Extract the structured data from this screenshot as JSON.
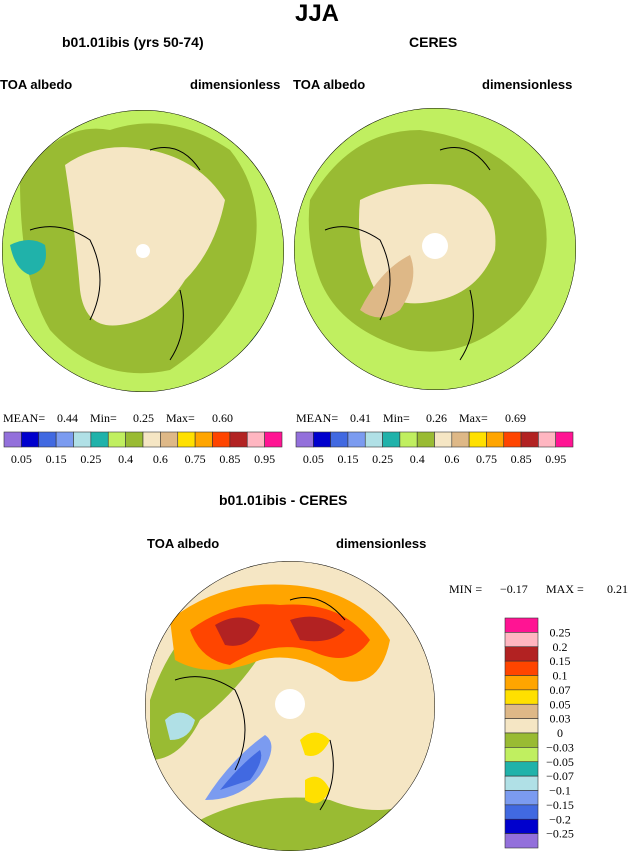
{
  "title": "JJA",
  "panels": [
    {
      "title": "b01.01ibis (yrs 50-74)",
      "left_label": "TOA albedo",
      "right_label": "dimensionless",
      "stats": {
        "mean_label": "MEAN=",
        "mean": "0.44",
        "min_label": "Min=",
        "min": "0.25",
        "max_label": "Max=",
        "max": "0.60"
      }
    },
    {
      "title": "CERES",
      "left_label": "TOA albedo",
      "right_label": "dimensionless",
      "stats": {
        "mean_label": "MEAN=",
        "mean": "0.41",
        "min_label": "Min=",
        "min": "0.26",
        "max_label": "Max=",
        "max": "0.69"
      }
    },
    {
      "title": "b01.01ibis - CERES",
      "left_label": "TOA albedo",
      "right_label": "dimensionless",
      "stats": {
        "min_label": "MIN =",
        "min": "−0.17",
        "max_label": "MAX =",
        "max": "0.21"
      }
    }
  ],
  "colors": [
    "#9370db",
    "#0000cd",
    "#4169e1",
    "#7b9bf0",
    "#b0e0e6",
    "#20b2aa",
    "#c0ef60",
    "#99bb33",
    "#f5e6c4",
    "#deb887",
    "#ffe000",
    "#ffa500",
    "#ff4500",
    "#b22222",
    "#ffb6c1",
    "#ff1493"
  ],
  "abs_colorbar_labels": [
    "0.05",
    "0.15",
    "0.25",
    "0.4",
    "0.6",
    "0.75",
    "0.85",
    "0.95"
  ],
  "diff_colorbar_labels": [
    "0.25",
    "0.2",
    "0.15",
    "0.1",
    "0.07",
    "0.05",
    "0.03",
    "0",
    "−0.03",
    "−0.05",
    "−0.07",
    "−0.1",
    "−0.15",
    "−0.2",
    "−0.25"
  ]
}
